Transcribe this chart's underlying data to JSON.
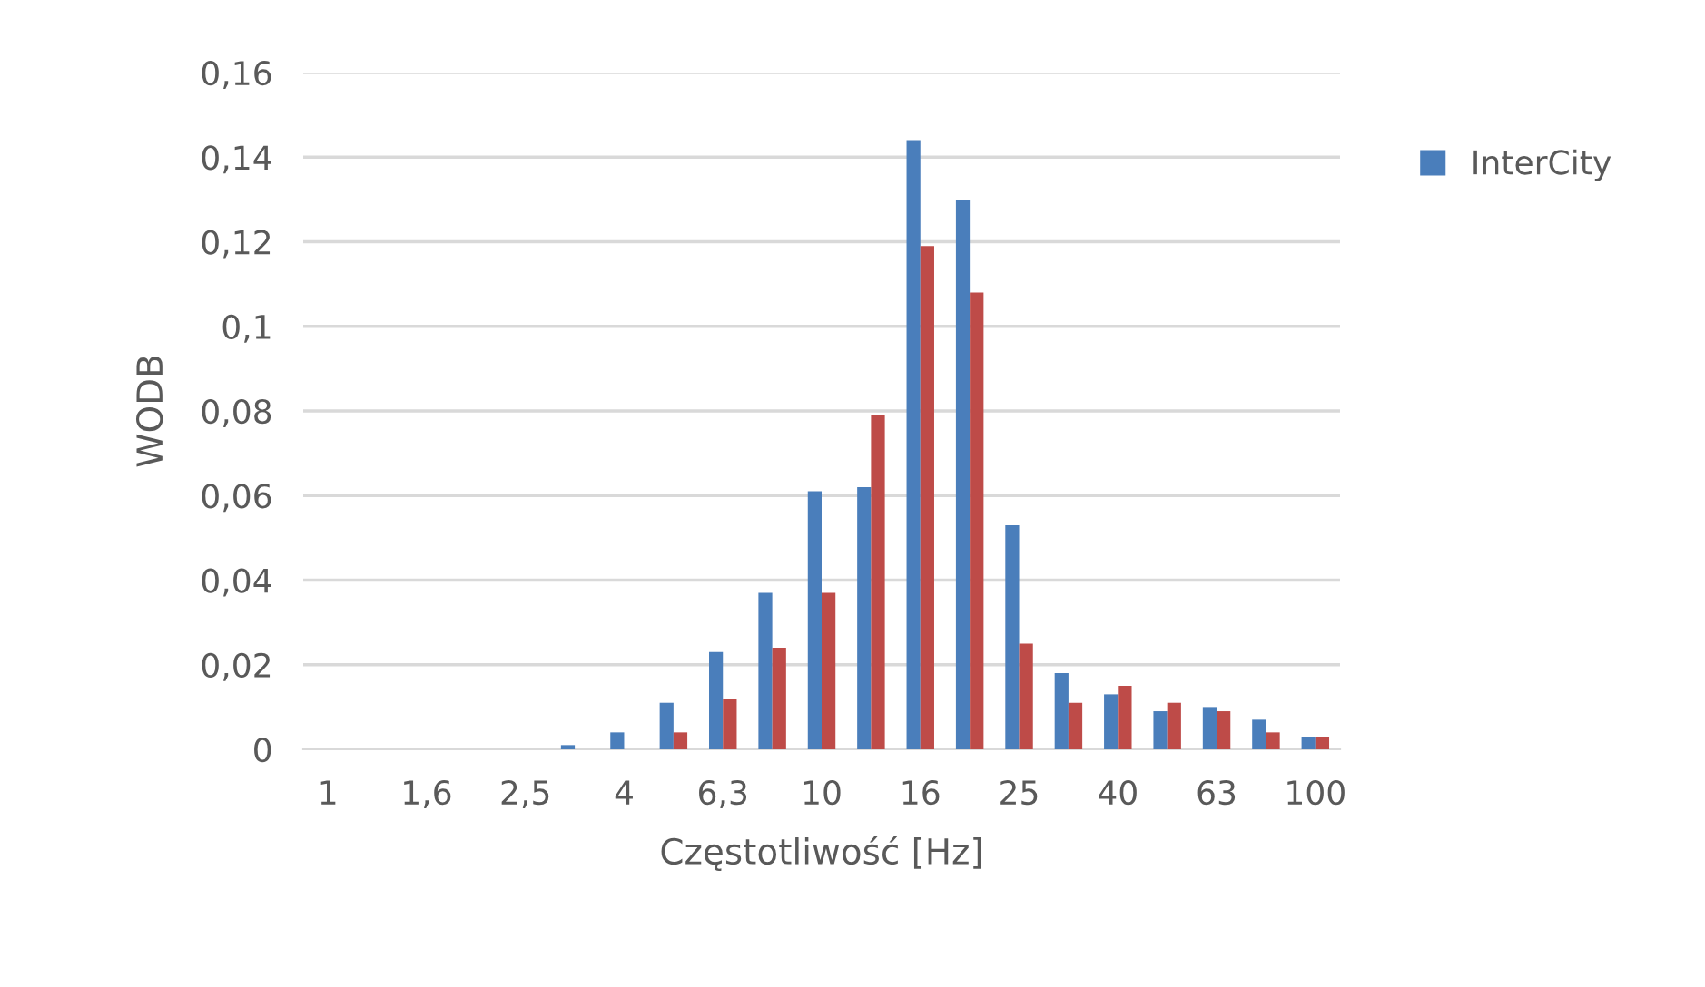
{
  "chart_data": {
    "type": "bar",
    "xlabel": "Częstotliwość [Hz]",
    "ylabel": "WODB",
    "categories": [
      "1",
      null,
      "1,6",
      null,
      "2,5",
      null,
      "4",
      null,
      "6,3",
      null,
      "10",
      null,
      "16",
      null,
      "25",
      null,
      "40",
      null,
      "63",
      null,
      "100"
    ],
    "series": [
      {
        "name": "InterCity",
        "color": "#4a7ebb",
        "values": [
          0,
          0,
          0,
          0,
          0,
          0.001,
          0.004,
          0.011,
          0.023,
          0.037,
          0.061,
          0.062,
          0.144,
          0.13,
          0.053,
          0.018,
          0.013,
          0.009,
          0.01,
          0.007,
          0.003
        ]
      },
      {
        "color": "#be4b48",
        "values": [
          0,
          0,
          0,
          0,
          0,
          0,
          0,
          0.004,
          0.012,
          0.024,
          0.037,
          0.079,
          0.119,
          0.108,
          0.025,
          0.011,
          0.015,
          0.011,
          0.009,
          0.004,
          0.003
        ]
      }
    ],
    "ylim": [
      0,
      0.16
    ],
    "yticks": [
      {
        "value": 0,
        "label": "0"
      },
      {
        "value": 0.02,
        "label": "0,02"
      },
      {
        "value": 0.04,
        "label": "0,04"
      },
      {
        "value": 0.06,
        "label": "0,06"
      },
      {
        "value": 0.08,
        "label": "0,08"
      },
      {
        "value": 0.1,
        "label": "0,1"
      },
      {
        "value": 0.12,
        "label": "0,12"
      },
      {
        "value": 0.14,
        "label": "0,14"
      },
      {
        "value": 0.16,
        "label": "0,16"
      }
    ],
    "grid": "y",
    "legend": "right"
  }
}
